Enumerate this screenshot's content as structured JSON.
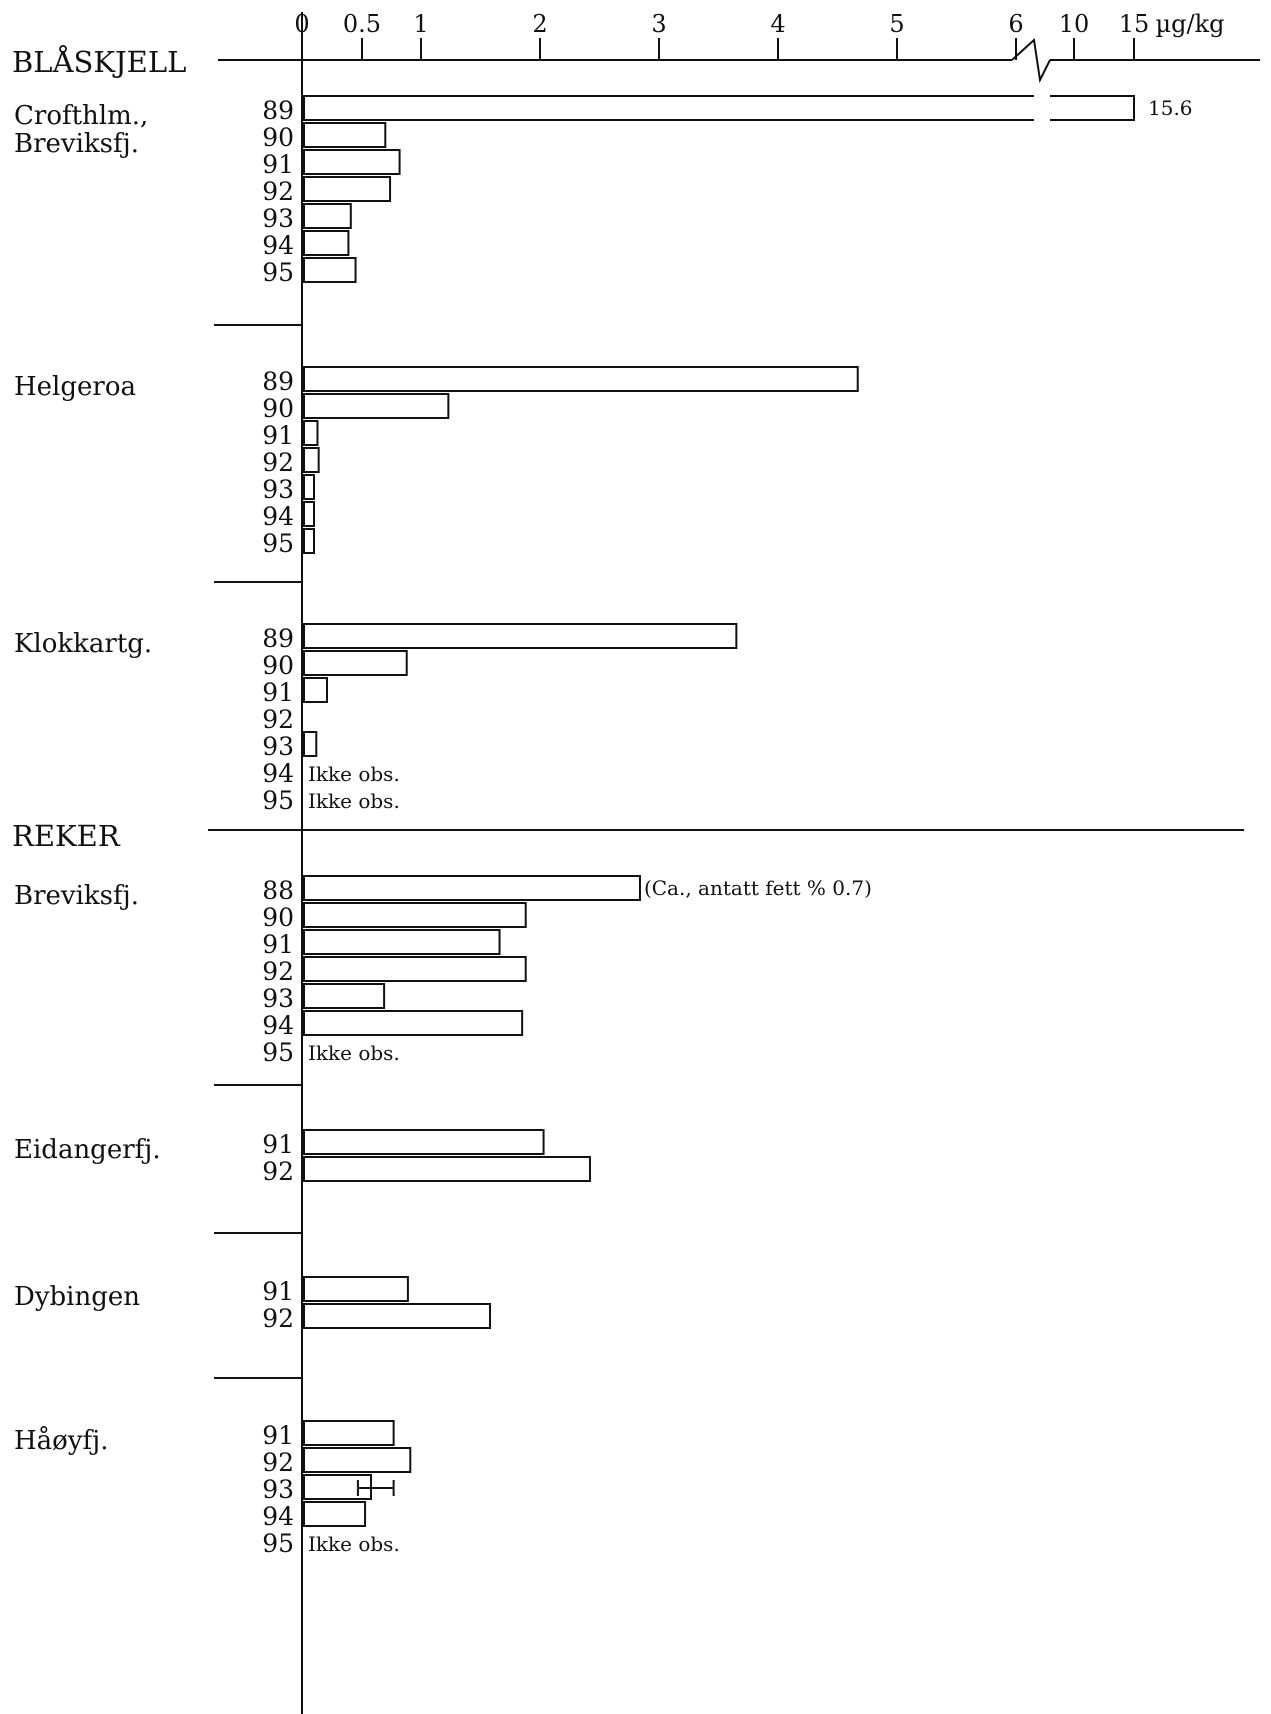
{
  "chart_data": {
    "type": "bar",
    "orientation": "horizontal",
    "unit": "µg/kg",
    "x_ticks": [
      "0",
      "0.5",
      "1",
      "2",
      "3",
      "4",
      "5",
      "6",
      "10",
      "15"
    ],
    "axis_break": "between 6 and 10",
    "groups": [
      {
        "name": "BLÅSKJELL",
        "sites": [
          {
            "name": "Crofthlm.,\nBreviksfj.",
            "years": [
              {
                "year": "89",
                "value": 15.6,
                "label": "15.6"
              },
              {
                "year": "90",
                "value": 0.7
              },
              {
                "year": "91",
                "value": 0.82
              },
              {
                "year": "92",
                "value": 0.74
              },
              {
                "year": "93",
                "value": 0.41
              },
              {
                "year": "94",
                "value": 0.39
              },
              {
                "year": "95",
                "value": 0.45
              }
            ]
          },
          {
            "name": "Helgeroa",
            "years": [
              {
                "year": "89",
                "value": 4.67
              },
              {
                "year": "90",
                "value": 1.23
              },
              {
                "year": "91",
                "value": 0.13
              },
              {
                "year": "92",
                "value": 0.14
              },
              {
                "year": "93",
                "value": 0.09
              },
              {
                "year": "94",
                "value": 0.09
              },
              {
                "year": "95",
                "value": 0.1
              }
            ]
          },
          {
            "name": "Klokkartg.",
            "years": [
              {
                "year": "89",
                "value": 3.65
              },
              {
                "year": "90",
                "value": 0.88
              },
              {
                "year": "91",
                "value": 0.21
              },
              {
                "year": "92",
                "value": null
              },
              {
                "year": "93",
                "value": 0.12
              },
              {
                "year": "94",
                "value": null,
                "note": "Ikke obs."
              },
              {
                "year": "95",
                "value": null,
                "note": "Ikke obs."
              }
            ]
          }
        ]
      },
      {
        "name": "REKER",
        "sites": [
          {
            "name": "Breviksfj.",
            "years": [
              {
                "year": "88",
                "value": 2.84,
                "label": "(Ca., antatt fett % 0.7)"
              },
              {
                "year": "90",
                "value": 1.88
              },
              {
                "year": "91",
                "value": 1.66
              },
              {
                "year": "92",
                "value": 1.88
              },
              {
                "year": "93",
                "value": 0.69
              },
              {
                "year": "94",
                "value": 1.85
              },
              {
                "year": "95",
                "value": null,
                "note": "Ikke obs."
              }
            ]
          },
          {
            "name": "Eidangerfj.",
            "years": [
              {
                "year": "91",
                "value": 2.03
              },
              {
                "year": "92",
                "value": 2.42
              }
            ]
          },
          {
            "name": "Dybingen",
            "years": [
              {
                "year": "91",
                "value": 0.89
              },
              {
                "year": "92",
                "value": 1.58
              }
            ]
          },
          {
            "name": "Håøyfj.",
            "years": [
              {
                "year": "91",
                "value": 0.77
              },
              {
                "year": "92",
                "value": 0.91
              },
              {
                "year": "93",
                "value": 0.58,
                "error": [
                  0.47,
                  0.77
                ]
              },
              {
                "year": "94",
                "value": 0.53
              },
              {
                "year": "95",
                "value": null,
                "note": "Ikke obs."
              }
            ]
          }
        ]
      }
    ]
  }
}
